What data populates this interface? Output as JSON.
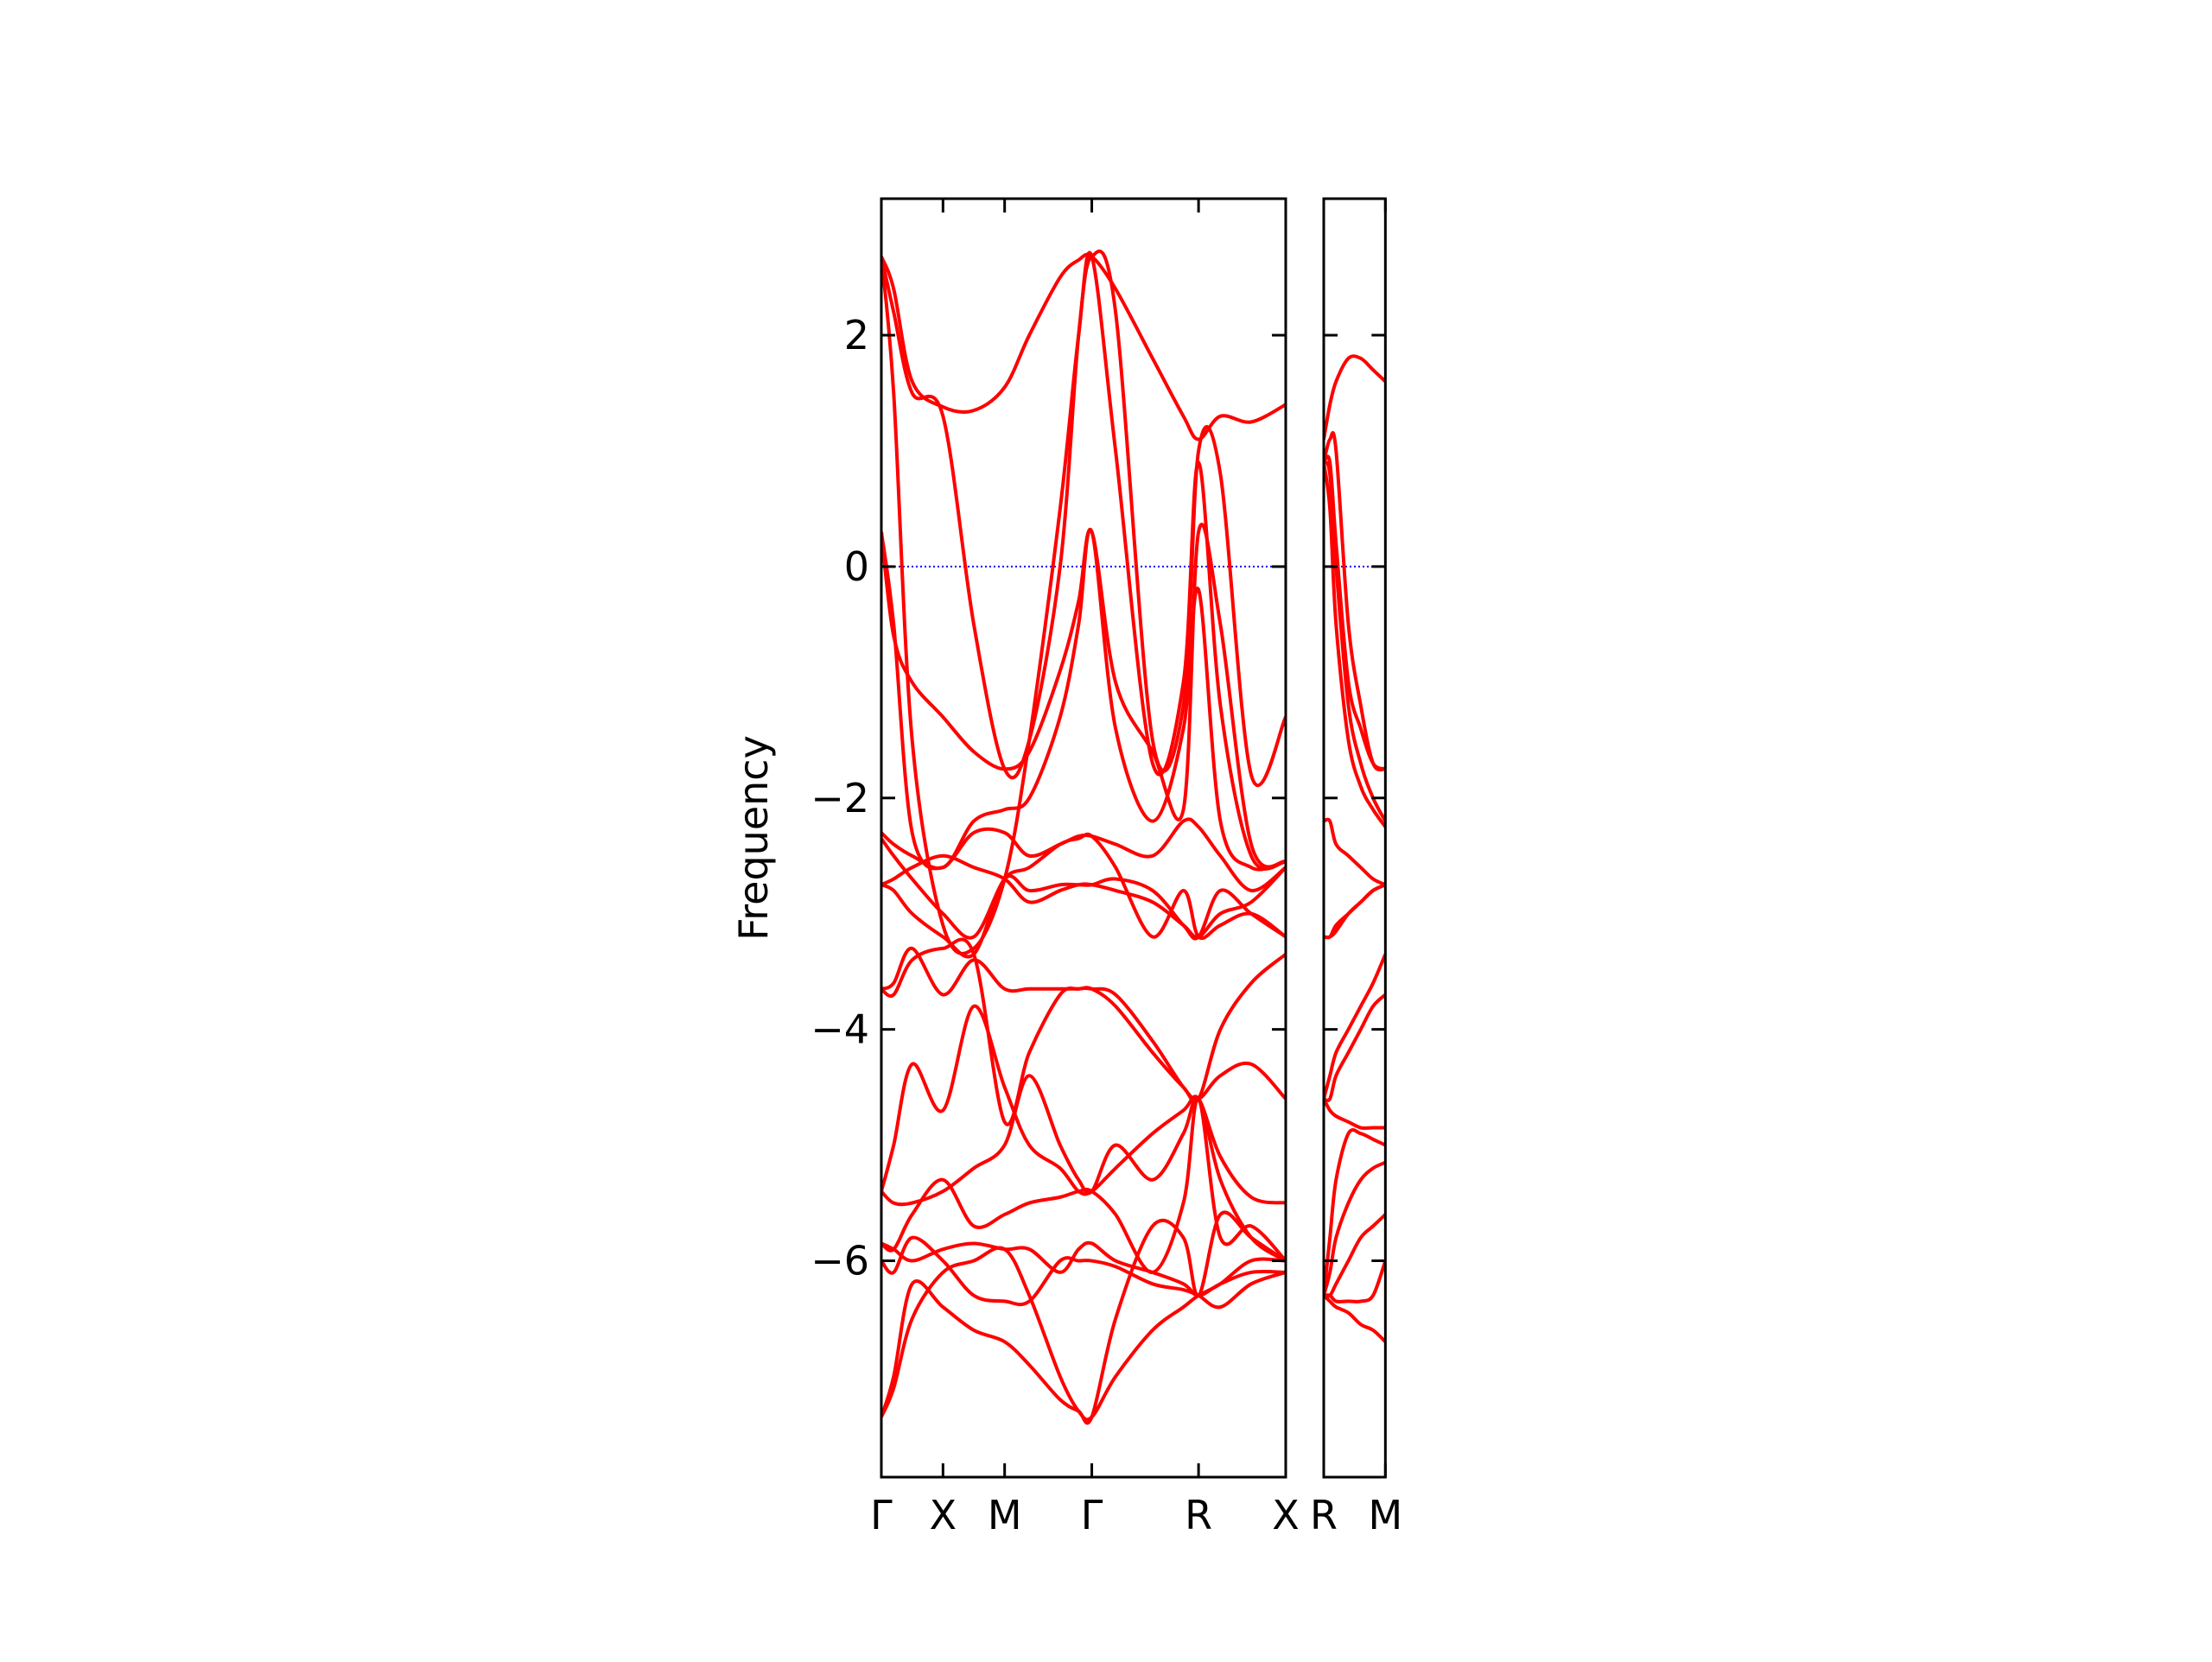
{
  "chart_data": [
    {
      "type": "line",
      "ylabel": "Frequency",
      "color": "#ff0000",
      "xlim": [
        0,
        3.28
      ],
      "ylim": [
        -7.87,
        3.18
      ],
      "xticks": [
        {
          "value": 0,
          "label": "Γ"
        },
        {
          "value": 0.5,
          "label": "X"
        },
        {
          "value": 1.0,
          "label": "M"
        },
        {
          "value": 1.707,
          "label": "Γ"
        },
        {
          "value": 2.573,
          "label": "R"
        },
        {
          "value": 3.28,
          "label": "X"
        }
      ],
      "yticks": [
        {
          "value": -6,
          "label": "−6"
        },
        {
          "value": -4,
          "label": "−4"
        },
        {
          "value": -2,
          "label": "−2"
        },
        0,
        2
      ],
      "hline": 0,
      "hline_color": "#0000ff",
      "x": [
        0,
        0.1,
        0.25,
        0.5,
        0.75,
        1.0,
        1.2,
        1.45,
        1.6,
        1.707,
        1.9,
        2.2,
        2.45,
        2.573,
        2.75,
        3.0,
        3.28
      ],
      "series": [
        {
          "values": [
            2.68,
            2.4,
            1.6,
            1.38,
            1.35,
            1.55,
            2.0,
            2.5,
            2.65,
            2.68,
            2.4,
            1.8,
            1.3,
            1.1,
            1.3,
            1.25,
            1.4
          ]
        },
        {
          "values": [
            2.68,
            1.5,
            -1.5,
            -3.1,
            -3.3,
            -2.7,
            -1.5,
            0.5,
            2.0,
            2.68,
            1.0,
            -1.7,
            -1.0,
            0.9,
            -1.2,
            -2.5,
            -2.55
          ]
        },
        {
          "values": [
            2.68,
            2.2,
            1.5,
            1.3,
            -0.5,
            -1.75,
            -1.5,
            0.0,
            2.0,
            2.68,
            2.2,
            -1.5,
            -1.2,
            1.0,
            0.8,
            -1.8,
            -1.3
          ]
        },
        {
          "values": [
            0.3,
            -0.6,
            -1.0,
            -1.3,
            -1.6,
            -1.75,
            -1.6,
            -0.9,
            -0.3,
            0.3,
            -1.0,
            -1.6,
            -2.1,
            0.3,
            -0.5,
            -2.4,
            -2.55
          ]
        },
        {
          "values": [
            0.3,
            -0.5,
            -2.3,
            -2.6,
            -2.2,
            -2.1,
            -2.0,
            -1.3,
            -0.5,
            0.3,
            -1.4,
            -2.2,
            -1.4,
            -0.2,
            -2.2,
            -2.6,
            -2.55
          ]
        },
        {
          "values": [
            -2.3,
            -2.4,
            -2.5,
            -2.6,
            -2.3,
            -2.3,
            -2.5,
            -2.4,
            -2.33,
            -2.33,
            -2.4,
            -2.5,
            -2.2,
            -2.25,
            -2.5,
            -2.8,
            -2.6
          ]
        },
        {
          "values": [
            -2.35,
            -2.5,
            -2.7,
            -3.0,
            -3.2,
            -2.7,
            -2.6,
            -2.4,
            -2.35,
            -2.33,
            -2.6,
            -3.2,
            -2.8,
            -3.2,
            -3.1,
            -3.0,
            -3.2
          ]
        },
        {
          "values": [
            -2.75,
            -2.7,
            -2.6,
            -2.5,
            -2.6,
            -2.7,
            -2.9,
            -2.8,
            -2.75,
            -2.75,
            -2.8,
            -2.9,
            -3.1,
            -3.2,
            -3.0,
            -2.9,
            -2.6
          ]
        },
        {
          "values": [
            -2.75,
            -2.8,
            -3.0,
            -3.2,
            -3.35,
            -2.7,
            -2.8,
            -2.75,
            -2.75,
            -2.75,
            -2.7,
            -2.8,
            -3.1,
            -3.2,
            -2.8,
            -3.0,
            -3.2
          ]
        },
        {
          "values": [
            -3.65,
            -3.6,
            -3.3,
            -3.7,
            -3.4,
            -3.65,
            -3.65,
            -3.65,
            -3.65,
            -3.65,
            -3.8,
            -4.2,
            -4.5,
            -4.6,
            -4.0,
            -3.6,
            -3.35
          ]
        },
        {
          "values": [
            -3.65,
            -3.7,
            -3.4,
            -3.3,
            -3.35,
            -4.8,
            -4.2,
            -3.7,
            -3.65,
            -3.65,
            -3.7,
            -4.1,
            -4.5,
            -4.6,
            -4.4,
            -4.3,
            -4.6
          ]
        },
        {
          "values": [
            -5.4,
            -5.0,
            -4.3,
            -4.7,
            -3.8,
            -4.5,
            -5.0,
            -5.2,
            -5.4,
            -5.4,
            -5.2,
            -4.9,
            -4.7,
            -4.6,
            -5.1,
            -5.45,
            -5.5
          ]
        },
        {
          "values": [
            -5.4,
            -5.5,
            -5.5,
            -5.4,
            -5.2,
            -5.0,
            -4.4,
            -5.0,
            -5.3,
            -5.4,
            -5.0,
            -5.3,
            -4.9,
            -4.6,
            -5.3,
            -5.8,
            -6.0
          ]
        },
        {
          "values": [
            -5.85,
            -5.9,
            -5.6,
            -5.3,
            -5.7,
            -5.6,
            -5.5,
            -5.45,
            -5.4,
            -5.4,
            -5.6,
            -6.1,
            -5.5,
            -4.6,
            -5.8,
            -5.7,
            -6.0
          ]
        },
        {
          "values": [
            -5.85,
            -5.9,
            -6.0,
            -5.9,
            -5.85,
            -5.9,
            -5.9,
            -6.1,
            -5.9,
            -5.85,
            -6.0,
            -6.1,
            -6.2,
            -6.3,
            -6.2,
            -6.1,
            -6.1
          ]
        },
        {
          "values": [
            -6.0,
            -6.1,
            -5.8,
            -6.0,
            -6.3,
            -6.35,
            -6.35,
            -6.0,
            -6.0,
            -6.0,
            -6.05,
            -6.2,
            -6.25,
            -6.3,
            -6.4,
            -6.2,
            -6.1
          ]
        },
        {
          "values": [
            -7.35,
            -7.1,
            -6.5,
            -6.1,
            -6.0,
            -5.9,
            -6.3,
            -7.0,
            -7.3,
            -7.35,
            -7.0,
            -6.6,
            -6.4,
            -6.3,
            -6.2,
            -6.0,
            -6.0
          ]
        },
        {
          "values": [
            -7.35,
            -7.0,
            -6.2,
            -6.4,
            -6.6,
            -6.7,
            -6.9,
            -7.2,
            -7.3,
            -7.35,
            -6.5,
            -5.7,
            -5.8,
            -6.3,
            -5.6,
            -5.8,
            -6.0
          ]
        }
      ]
    },
    {
      "type": "line",
      "color": "#ff0000",
      "sharey": true,
      "xlim": [
        0,
        0.5
      ],
      "ylim": [
        -7.87,
        3.18
      ],
      "xticks": [
        {
          "value": 0,
          "label": "R"
        },
        {
          "value": 0.5,
          "label": "M"
        }
      ],
      "hline": 0,
      "hline_color": "#0000ff",
      "x": [
        0,
        0.05,
        0.1,
        0.2,
        0.3,
        0.4,
        0.5
      ],
      "series": [
        {
          "values": [
            1.1,
            1.4,
            1.6,
            1.8,
            1.8,
            1.7,
            1.6
          ]
        },
        {
          "values": [
            0.9,
            1.1,
            1.0,
            -0.5,
            -1.2,
            -1.7,
            -1.75
          ]
        },
        {
          "values": [
            0.9,
            0.9,
            0.2,
            -1.0,
            -1.4,
            -1.7,
            -1.75
          ]
        },
        {
          "values": [
            0.9,
            0.8,
            0.0,
            -1.2,
            -1.7,
            -2.0,
            -2.2
          ]
        },
        {
          "values": [
            0.9,
            0.5,
            -0.5,
            -1.5,
            -1.9,
            -2.1,
            -2.25
          ]
        },
        {
          "values": [
            -2.2,
            -2.2,
            -2.4,
            -2.5,
            -2.6,
            -2.7,
            -2.75
          ]
        },
        {
          "values": [
            -3.2,
            -3.2,
            -3.1,
            -3.0,
            -2.9,
            -2.8,
            -2.75
          ]
        },
        {
          "values": [
            -3.2,
            -3.2,
            -3.15,
            -3.0,
            -2.9,
            -2.8,
            -2.75
          ]
        },
        {
          "values": [
            -4.6,
            -4.4,
            -4.2,
            -4.0,
            -3.8,
            -3.6,
            -3.35
          ]
        },
        {
          "values": [
            -4.6,
            -4.6,
            -4.4,
            -4.2,
            -4.0,
            -3.8,
            -3.7
          ]
        },
        {
          "values": [
            -4.6,
            -4.7,
            -4.75,
            -4.8,
            -4.85,
            -4.85,
            -4.85
          ]
        },
        {
          "values": [
            -6.3,
            -5.8,
            -5.3,
            -4.9,
            -4.9,
            -4.95,
            -5.0
          ]
        },
        {
          "values": [
            -6.3,
            -6.1,
            -5.8,
            -5.5,
            -5.3,
            -5.2,
            -5.15
          ]
        },
        {
          "values": [
            -6.3,
            -6.3,
            -6.2,
            -6.0,
            -5.8,
            -5.7,
            -5.6
          ]
        },
        {
          "values": [
            -6.3,
            -6.3,
            -6.35,
            -6.35,
            -6.35,
            -6.3,
            -6.0
          ]
        },
        {
          "values": [
            -6.3,
            -6.35,
            -6.4,
            -6.45,
            -6.55,
            -6.6,
            -6.7
          ]
        }
      ]
    }
  ]
}
